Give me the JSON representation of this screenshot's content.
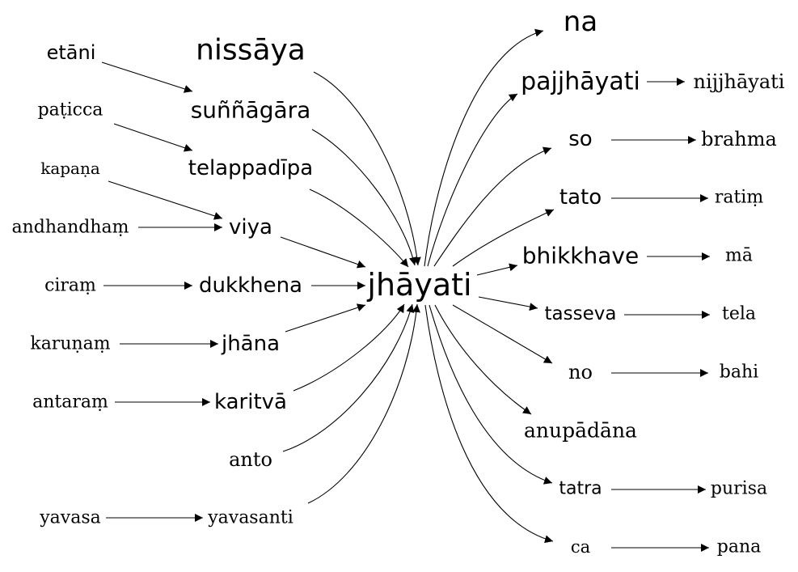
{
  "nodes": {
    "etani": "etāni",
    "paticca": "paṭicca",
    "kapana": "kapaṇa",
    "andhandham": "andhandhaṃ",
    "ciram": "ciraṃ",
    "karunam": "karuṇaṃ",
    "antaram": "antaraṃ",
    "yavasa": "yavasa",
    "nissaya": "nissāya",
    "sunnagara": "suññāgāra",
    "telappadipa": "telappadīpa",
    "viya": "viya",
    "dukkhena": "dukkhena",
    "jhana": "jhāna",
    "karitva": "karitvā",
    "anto": "anto",
    "yavasanti": "yavasanti",
    "jhayati": "jhāyati",
    "na": "na",
    "pajjhayati": "pajjhāyati",
    "so": "so",
    "tato": "tato",
    "bhikkhave": "bhikkhave",
    "tasseva": "tasseva",
    "no": "no",
    "anupadana": "anupādāna",
    "tatra": "tatra",
    "ca": "ca",
    "nijjhayati": "nijjhāyati",
    "brahma": "brahma",
    "ratim": "ratiṃ",
    "ma": "mā",
    "tela": "tela",
    "bahi": "bahi",
    "purisa": "purisa",
    "pana": "pana"
  },
  "edges": [
    [
      "etani",
      "sunnagara"
    ],
    [
      "paticca",
      "telappadipa"
    ],
    [
      "kapana",
      "viya"
    ],
    [
      "andhandham",
      "viya"
    ],
    [
      "ciram",
      "dukkhena"
    ],
    [
      "karunam",
      "jhana"
    ],
    [
      "antaram",
      "karitva"
    ],
    [
      "yavasa",
      "yavasanti"
    ],
    [
      "nissaya",
      "jhayati"
    ],
    [
      "sunnagara",
      "jhayati"
    ],
    [
      "telappadipa",
      "jhayati"
    ],
    [
      "viya",
      "jhayati"
    ],
    [
      "dukkhena",
      "jhayati"
    ],
    [
      "jhana",
      "jhayati"
    ],
    [
      "karitva",
      "jhayati"
    ],
    [
      "anto",
      "jhayati"
    ],
    [
      "yavasanti",
      "jhayati"
    ],
    [
      "jhayati",
      "na"
    ],
    [
      "jhayati",
      "pajjhayati"
    ],
    [
      "jhayati",
      "so"
    ],
    [
      "jhayati",
      "tato"
    ],
    [
      "jhayati",
      "bhikkhave"
    ],
    [
      "jhayati",
      "tasseva"
    ],
    [
      "jhayati",
      "no"
    ],
    [
      "jhayati",
      "anupadana"
    ],
    [
      "jhayati",
      "tatra"
    ],
    [
      "jhayati",
      "ca"
    ],
    [
      "pajjhayati",
      "nijjhayati"
    ],
    [
      "so",
      "brahma"
    ],
    [
      "tato",
      "ratim"
    ],
    [
      "bhikkhave",
      "ma"
    ],
    [
      "tasseva",
      "tela"
    ],
    [
      "no",
      "bahi"
    ],
    [
      "tatra",
      "purisa"
    ],
    [
      "ca",
      "pana"
    ]
  ]
}
